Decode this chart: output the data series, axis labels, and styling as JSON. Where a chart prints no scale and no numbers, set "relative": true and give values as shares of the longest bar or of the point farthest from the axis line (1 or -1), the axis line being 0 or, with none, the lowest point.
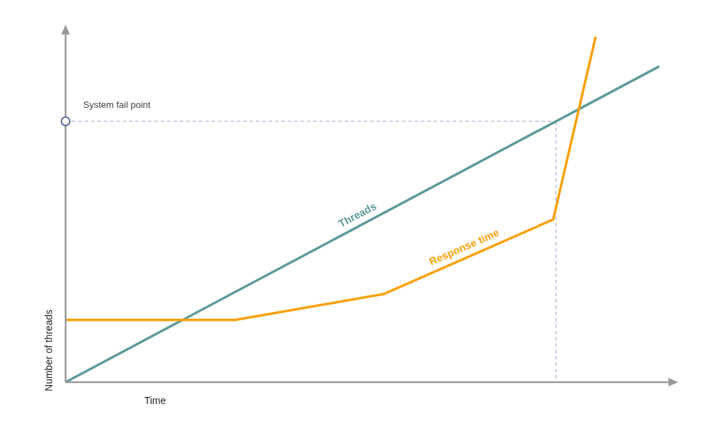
{
  "chart_data": {
    "type": "line",
    "relative": true,
    "xlabel": "Time",
    "ylabel": "Number of threads",
    "marker": "none",
    "line_style": "solid",
    "categories": [
      null,
      null,
      null,
      null,
      null,
      null,
      null,
      null,
      null,
      null,
      null,
      null,
      null,
      null,
      null,
      null,
      null,
      null,
      null,
      null,
      null,
      null,
      null,
      null,
      null,
      null,
      null,
      null,
      null
    ],
    "series": [
      {
        "name": "Threads",
        "color": "#5f9b9b",
        "values": [
          0,
          null,
          null,
          null,
          null,
          null,
          null,
          null,
          null,
          null,
          null,
          null,
          null,
          null,
          null,
          null,
          null,
          null,
          null,
          null,
          null,
          null,
          null,
          null,
          null,
          null,
          null,
          null,
          0.914
        ]
      },
      {
        "name": "Response time",
        "color": "#f9a10a",
        "values": [
          0.18,
          null,
          null,
          null,
          null,
          null,
          null,
          null,
          0.18,
          null,
          null,
          null,
          null,
          null,
          null,
          0.255,
          null,
          null,
          null,
          null,
          null,
          null,
          null,
          0.471,
          null,
          1,
          null,
          null,
          null
        ]
      }
    ],
    "ref_lines": [
      {
        "axis": "y",
        "value": 0.755,
        "label": "System fail point",
        "color": "#9aa0c8",
        "line_style": "dashed"
      }
    ]
  }
}
